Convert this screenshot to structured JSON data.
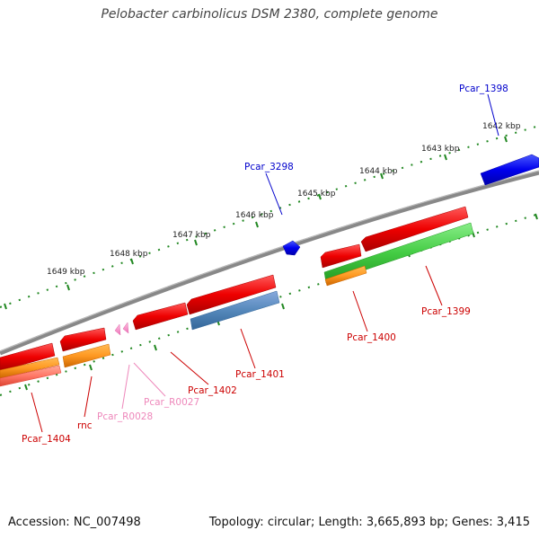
{
  "title": "Pelobacter carbinolicus DSM 2380, complete genome",
  "footer": {
    "accession_label": "Accession:",
    "accession": "NC_007498",
    "topology_label": "Topology:",
    "topology": "circular",
    "length_label": "Length:",
    "length": "3,665,893 bp",
    "genes_label": "Genes:",
    "genes": "3,415"
  },
  "scale": {
    "labels": [
      "1642 kbp",
      "1643 kbp",
      "1644 kbp",
      "1645 kbp",
      "1646 kbp",
      "1647 kbp",
      "1648 kbp",
      "1649 kbp"
    ]
  },
  "genes": [
    {
      "id": "Pcar_1398",
      "strand": "+",
      "color": "#0000ee",
      "label_color": "#0000cc"
    },
    {
      "id": "Pcar_3298",
      "strand": "+",
      "color": "#0000ee",
      "label_color": "#0000cc"
    },
    {
      "id": "Pcar_1399",
      "strand": "-",
      "color": "#ee0000",
      "label_color": "#cc0000"
    },
    {
      "id": "Pcar_1400",
      "strand": "-",
      "color": "#ee0000",
      "label_color": "#cc0000"
    },
    {
      "id": "Pcar_1401",
      "strand": "-",
      "color": "#ee0000",
      "label_color": "#cc0000"
    },
    {
      "id": "Pcar_1402",
      "strand": "-",
      "color": "#ee0000",
      "label_color": "#cc0000"
    },
    {
      "id": "Pcar_R0027",
      "strand": "-",
      "color": "#ff88cc",
      "label_color": "#ee88bb"
    },
    {
      "id": "Pcar_R0028",
      "strand": "-",
      "color": "#ff88cc",
      "label_color": "#ee88bb"
    },
    {
      "id": "rnc",
      "strand": "-",
      "color": "#ee0000",
      "label_color": "#cc0000"
    },
    {
      "id": "Pcar_1404",
      "strand": "-",
      "color": "#ee0000",
      "label_color": "#cc0000"
    }
  ],
  "colors": {
    "backbone": "#888888",
    "ticks": "#228822",
    "cog_green": "#44cc44",
    "cog_orange": "#ff9922",
    "cog_steelblue": "#5588bb",
    "cog_salmon": "#ff7766"
  }
}
